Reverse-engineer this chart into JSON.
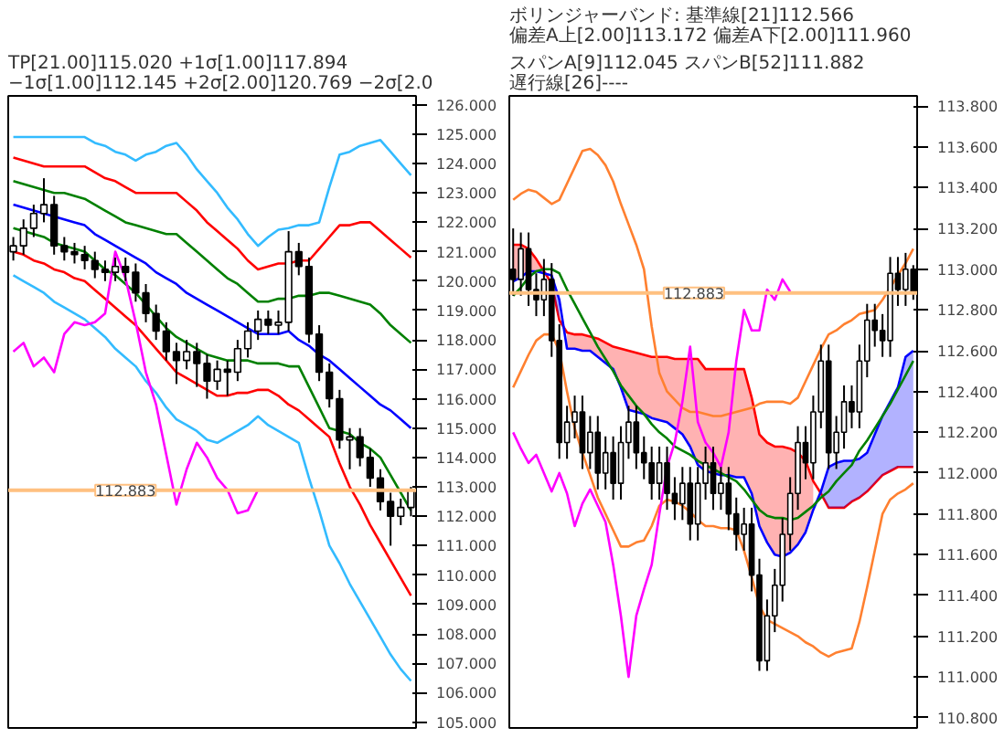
{
  "chart_data": [
    {
      "type": "candlestick",
      "title": "TP[21.00]115.020 +1σ[1.00]117.894 −1σ[1.00]112.145 +2σ[2.00]120.769 −2σ[2.0",
      "tick_labels": "y",
      "grid": false,
      "ylim": [
        104.8,
        126.3
      ],
      "yticks": [
        {
          "value": 105,
          "label": "105.000"
        },
        {
          "value": 106,
          "label": "106.000"
        },
        {
          "value": 107,
          "label": "107.000"
        },
        {
          "value": 108,
          "label": "108.000"
        },
        {
          "value": 109,
          "label": "109.000"
        },
        {
          "value": 110,
          "label": "110.000"
        },
        {
          "value": 111,
          "label": "111.000"
        },
        {
          "value": 112,
          "label": "112.000"
        },
        {
          "value": 113,
          "label": "113.000"
        },
        {
          "value": 114,
          "label": "114.000"
        },
        {
          "value": 115,
          "label": "115.000"
        },
        {
          "value": 116,
          "label": "116.000"
        },
        {
          "value": 117,
          "label": "117.000"
        },
        {
          "value": 118,
          "label": "118.000"
        },
        {
          "value": 119,
          "label": "119.000"
        },
        {
          "value": 120,
          "label": "120.000"
        },
        {
          "value": 121,
          "label": "121.000"
        },
        {
          "value": 122,
          "label": "122.000"
        },
        {
          "value": 123,
          "label": "123.000"
        },
        {
          "value": 124,
          "label": "124.000"
        },
        {
          "value": 125,
          "label": "125.000"
        },
        {
          "value": 126,
          "label": "126.000"
        }
      ],
      "ref_lines": [
        {
          "axis": "y",
          "value": 112.883,
          "label": "112.883",
          "color": "#ffc080"
        }
      ],
      "categories": [
        null,
        null,
        null,
        null,
        null,
        null,
        null,
        null,
        null,
        null,
        null,
        null,
        null,
        null,
        null,
        null,
        null,
        null,
        null,
        null,
        null,
        null,
        null,
        null,
        null,
        null,
        null,
        null,
        null,
        null,
        null,
        null,
        null,
        null,
        null,
        null,
        null,
        null,
        null,
        null
      ],
      "ohlc": [
        [
          121.0,
          121.5,
          120.7,
          121.2
        ],
        [
          121.2,
          122.1,
          120.9,
          121.8
        ],
        [
          121.8,
          122.6,
          121.5,
          122.3
        ],
        [
          122.3,
          123.5,
          122.0,
          122.6
        ],
        [
          122.6,
          122.9,
          120.9,
          121.2
        ],
        [
          121.2,
          121.5,
          120.7,
          121.0
        ],
        [
          121.0,
          121.3,
          120.6,
          120.9
        ],
        [
          120.9,
          121.2,
          120.4,
          120.7
        ],
        [
          120.7,
          121.0,
          120.1,
          120.4
        ],
        [
          120.4,
          120.7,
          120.0,
          120.3
        ],
        [
          120.3,
          120.8,
          120.0,
          120.5
        ],
        [
          120.5,
          120.8,
          120.0,
          120.3
        ],
        [
          120.3,
          120.6,
          119.3,
          119.6
        ],
        [
          119.6,
          119.9,
          118.6,
          118.9
        ],
        [
          118.9,
          119.2,
          118.0,
          118.3
        ],
        [
          118.3,
          118.6,
          117.3,
          117.6
        ],
        [
          117.6,
          117.9,
          116.5,
          117.3
        ],
        [
          117.3,
          118.0,
          117.0,
          117.6
        ],
        [
          117.6,
          117.9,
          116.4,
          117.2
        ],
        [
          117.2,
          117.5,
          116.0,
          116.6
        ],
        [
          116.6,
          117.3,
          116.3,
          117.0
        ],
        [
          117.0,
          117.3,
          116.1,
          116.9
        ],
        [
          116.9,
          118.0,
          116.6,
          117.7
        ],
        [
          117.7,
          118.6,
          117.4,
          118.3
        ],
        [
          118.3,
          119.0,
          118.0,
          118.7
        ],
        [
          118.7,
          119.0,
          118.2,
          118.5
        ],
        [
          118.5,
          119.0,
          118.2,
          118.6
        ],
        [
          118.6,
          121.7,
          118.3,
          121.0
        ],
        [
          121.0,
          121.3,
          120.2,
          120.5
        ],
        [
          120.5,
          120.8,
          117.9,
          118.2
        ],
        [
          118.2,
          118.5,
          116.6,
          116.9
        ],
        [
          116.9,
          117.2,
          115.7,
          116.0
        ],
        [
          116.0,
          116.3,
          114.3,
          114.6
        ],
        [
          114.6,
          115.0,
          113.6,
          114.7
        ],
        [
          114.7,
          115.0,
          113.7,
          114.0
        ],
        [
          114.0,
          114.3,
          113.0,
          113.3
        ],
        [
          113.3,
          113.6,
          112.2,
          112.5
        ],
        [
          112.5,
          112.8,
          111.0,
          112.0
        ],
        [
          112.0,
          112.6,
          111.7,
          112.3
        ],
        [
          112.3,
          113.0,
          112.0,
          112.9
        ]
      ],
      "series": [
        {
          "type": "line",
          "color": "#33bbff",
          "values": [
            124.9,
            124.9,
            124.9,
            124.9,
            124.9,
            124.9,
            124.9,
            124.9,
            124.7,
            124.6,
            124.4,
            124.3,
            124.1,
            124.3,
            124.4,
            124.6,
            124.7,
            124.3,
            123.8,
            123.4,
            123.0,
            122.5,
            122.1,
            121.6,
            121.2,
            121.5,
            121.75,
            121.8,
            121.9,
            121.9,
            122.0,
            123.2,
            124.3,
            124.4,
            124.6,
            124.7,
            124.8,
            124.4,
            124.0,
            123.6
          ]
        },
        {
          "type": "line",
          "color": "#ff0000",
          "values": [
            124.2,
            124.1,
            124.0,
            123.9,
            123.9,
            123.9,
            123.9,
            123.9,
            123.7,
            123.5,
            123.4,
            123.2,
            123.0,
            123.0,
            123.0,
            123.0,
            123.0,
            122.7,
            122.4,
            122.0,
            121.7,
            121.4,
            121.1,
            120.7,
            120.4,
            120.5,
            120.6,
            120.6,
            120.7,
            120.7,
            121.1,
            121.5,
            121.9,
            121.9,
            122.0,
            122.0,
            121.7,
            121.4,
            121.1,
            120.8
          ]
        },
        {
          "type": "line",
          "color": "#008000",
          "values": [
            123.4,
            123.3,
            123.2,
            123.1,
            123.0,
            123.0,
            122.9,
            122.8,
            122.6,
            122.4,
            122.2,
            122.0,
            121.9,
            121.8,
            121.7,
            121.6,
            121.6,
            121.3,
            121.0,
            120.7,
            120.4,
            120.1,
            119.9,
            119.6,
            119.3,
            119.3,
            119.4,
            119.4,
            119.5,
            119.5,
            119.6,
            119.6,
            119.5,
            119.4,
            119.3,
            119.2,
            118.9,
            118.5,
            118.2,
            117.9
          ]
        },
        {
          "type": "line",
          "color": "#0000ff",
          "values": [
            122.6,
            122.5,
            122.4,
            122.3,
            122.2,
            122.1,
            122.0,
            121.9,
            121.6,
            121.4,
            121.2,
            121.0,
            120.8,
            120.6,
            120.3,
            120.1,
            119.9,
            119.6,
            119.4,
            119.2,
            119.0,
            118.8,
            118.6,
            118.4,
            118.2,
            118.2,
            118.2,
            118.3,
            118.0,
            117.8,
            117.5,
            117.3,
            117.0,
            116.7,
            116.4,
            116.1,
            115.8,
            115.6,
            115.3,
            115.0
          ]
        },
        {
          "type": "line",
          "color": "#008000",
          "values": [
            121.8,
            121.7,
            121.6,
            121.5,
            121.3,
            121.2,
            121.1,
            121.0,
            120.7,
            120.4,
            120.2,
            119.9,
            119.6,
            119.2,
            118.8,
            118.4,
            118.1,
            117.9,
            117.7,
            117.5,
            117.4,
            117.3,
            117.3,
            117.3,
            117.2,
            117.2,
            117.2,
            117.1,
            117.1,
            116.4,
            115.7,
            115.0,
            114.9,
            114.8,
            114.5,
            114.3,
            114.0,
            113.4,
            112.8,
            112.2
          ]
        },
        {
          "type": "line",
          "color": "#ff0000",
          "values": [
            121.0,
            120.9,
            120.7,
            120.6,
            120.4,
            120.3,
            120.1,
            120.0,
            119.7,
            119.4,
            119.1,
            118.8,
            118.5,
            118.1,
            117.7,
            117.3,
            116.9,
            116.7,
            116.5,
            116.3,
            116.1,
            116.1,
            116.2,
            116.2,
            116.3,
            116.3,
            116.1,
            115.8,
            115.6,
            115.3,
            115.0,
            114.7,
            113.8,
            113.0,
            112.4,
            111.7,
            111.1,
            110.5,
            109.9,
            109.3
          ]
        },
        {
          "type": "line",
          "color": "#33bbff",
          "values": [
            120.2,
            120.0,
            119.8,
            119.6,
            119.3,
            119.1,
            118.9,
            118.7,
            118.4,
            118.1,
            117.7,
            117.4,
            117.1,
            116.6,
            116.2,
            115.7,
            115.3,
            115.1,
            114.9,
            114.6,
            114.5,
            114.7,
            114.9,
            115.1,
            115.4,
            115.1,
            114.9,
            114.7,
            114.5,
            113.3,
            112.2,
            111.0,
            110.4,
            109.7,
            109.1,
            108.5,
            107.9,
            107.3,
            106.8,
            106.4
          ]
        },
        {
          "type": "line",
          "color": "#ff00ff",
          "values": [
            117.6,
            117.9,
            117.1,
            117.4,
            116.9,
            118.2,
            118.6,
            118.5,
            118.6,
            118.9,
            121.0,
            120.1,
            118.6,
            116.9,
            115.8,
            114.1,
            112.4,
            113.6,
            114.5,
            114.0,
            113.3,
            112.9,
            112.1,
            112.2,
            112.9,
            null,
            null,
            null,
            null,
            null,
            null,
            null,
            null,
            null,
            null,
            null,
            null,
            null,
            null,
            null
          ]
        }
      ]
    },
    {
      "type": "candlestick",
      "title": "ボリンジャーバンド: 基準線[21]112.566 偏差A上[2.00]113.172 偏差A下[2.00]111.960",
      "subtitle": "スパンA[9]112.045 スパンB[52]111.882 遅行線[26]----",
      "tick_labels": "y",
      "grid": false,
      "ylim": [
        110.75,
        113.85
      ],
      "yticks": [
        {
          "value": 110.8,
          "label": "110.800"
        },
        {
          "value": 111.0,
          "label": "111.000"
        },
        {
          "value": 111.2,
          "label": "111.200"
        },
        {
          "value": 111.4,
          "label": "111.400"
        },
        {
          "value": 111.6,
          "label": "111.600"
        },
        {
          "value": 111.8,
          "label": "111.800"
        },
        {
          "value": 112.0,
          "label": "112.000"
        },
        {
          "value": 112.2,
          "label": "112.200"
        },
        {
          "value": 112.4,
          "label": "112.400"
        },
        {
          "value": 112.6,
          "label": "112.600"
        },
        {
          "value": 112.8,
          "label": "112.800"
        },
        {
          "value": 113.0,
          "label": "113.000"
        },
        {
          "value": 113.2,
          "label": "113.200"
        },
        {
          "value": 113.4,
          "label": "113.400"
        },
        {
          "value": 113.6,
          "label": "113.600"
        },
        {
          "value": 113.8,
          "label": "113.800"
        }
      ],
      "ref_lines": [
        {
          "axis": "y",
          "value": 112.883,
          "label": "112.883",
          "color": "#ffc080"
        }
      ],
      "categories": [
        null,
        null,
        null,
        null,
        null,
        null,
        null,
        null,
        null,
        null,
        null,
        null,
        null,
        null,
        null,
        null,
        null,
        null,
        null,
        null,
        null,
        null,
        null,
        null,
        null,
        null,
        null,
        null,
        null,
        null,
        null,
        null,
        null,
        null,
        null,
        null,
        null,
        null,
        null,
        null,
        null,
        null,
        null,
        null,
        null,
        null,
        null,
        null,
        null,
        null,
        null,
        null,
        null
      ],
      "ohlc": [
        [
          113.0,
          113.2,
          112.87,
          112.95
        ],
        [
          112.95,
          113.18,
          112.87,
          113.1
        ],
        [
          113.1,
          113.18,
          112.82,
          112.9
        ],
        [
          112.9,
          112.98,
          112.77,
          112.85
        ],
        [
          112.85,
          113.05,
          112.77,
          112.95
        ],
        [
          112.95,
          113.03,
          112.57,
          112.65
        ],
        [
          112.65,
          112.73,
          112.07,
          112.15
        ],
        [
          112.15,
          112.33,
          112.07,
          112.25
        ],
        [
          112.25,
          112.38,
          112.17,
          112.3
        ],
        [
          112.3,
          112.38,
          112.02,
          112.1
        ],
        [
          112.1,
          112.28,
          112.02,
          112.2
        ],
        [
          112.2,
          112.28,
          111.92,
          112.0
        ],
        [
          112.0,
          112.18,
          111.92,
          112.1
        ],
        [
          112.1,
          112.18,
          111.87,
          111.95
        ],
        [
          111.95,
          112.23,
          111.87,
          112.15
        ],
        [
          112.15,
          112.33,
          112.07,
          112.25
        ],
        [
          112.25,
          112.33,
          112.02,
          112.1
        ],
        [
          112.1,
          112.18,
          111.97,
          112.05
        ],
        [
          112.05,
          112.13,
          111.87,
          111.95
        ],
        [
          111.95,
          112.13,
          111.87,
          112.05
        ],
        [
          112.05,
          112.13,
          111.82,
          111.9
        ],
        [
          111.9,
          111.98,
          111.77,
          111.85
        ],
        [
          111.85,
          112.03,
          111.77,
          111.95
        ],
        [
          111.95,
          112.03,
          111.67,
          111.75
        ],
        [
          111.75,
          112.03,
          111.67,
          111.95
        ],
        [
          111.95,
          112.13,
          111.87,
          112.05
        ],
        [
          112.05,
          112.13,
          111.82,
          111.9
        ],
        [
          111.9,
          112.03,
          111.82,
          111.95
        ],
        [
          111.95,
          112.03,
          111.72,
          111.8
        ],
        [
          111.8,
          111.88,
          111.62,
          111.7
        ],
        [
          111.7,
          111.83,
          111.62,
          111.75
        ],
        [
          111.75,
          111.83,
          111.42,
          111.5
        ],
        [
          111.5,
          111.58,
          111.03,
          111.08
        ],
        [
          111.08,
          111.38,
          111.03,
          111.3
        ],
        [
          111.3,
          111.53,
          111.22,
          111.45
        ],
        [
          111.45,
          111.78,
          111.37,
          111.7
        ],
        [
          111.7,
          111.98,
          111.62,
          111.9
        ],
        [
          111.9,
          112.23,
          111.82,
          112.15
        ],
        [
          112.15,
          112.23,
          111.97,
          112.05
        ],
        [
          112.05,
          112.38,
          111.97,
          112.3
        ],
        [
          112.3,
          112.63,
          112.22,
          112.55
        ],
        [
          112.55,
          112.63,
          112.02,
          112.1
        ],
        [
          112.1,
          112.28,
          112.02,
          112.2
        ],
        [
          112.2,
          112.43,
          112.12,
          112.35
        ],
        [
          112.35,
          112.43,
          112.22,
          112.3
        ],
        [
          112.3,
          112.63,
          112.22,
          112.55
        ],
        [
          112.55,
          112.83,
          112.47,
          112.75
        ],
        [
          112.75,
          112.83,
          112.62,
          112.7
        ],
        [
          112.7,
          112.78,
          112.57,
          112.65
        ],
        [
          112.65,
          113.06,
          112.57,
          112.98
        ],
        [
          112.98,
          113.06,
          112.82,
          112.9
        ],
        [
          112.9,
          113.08,
          112.82,
          113.0
        ],
        [
          113.0,
          113.02,
          112.85,
          112.89
        ]
      ],
      "series": [
        {
          "type": "line",
          "color": "#ff0000",
          "values": [
            113.12,
            113.12,
            113.1,
            113.05,
            112.99,
            112.93,
            112.75,
            112.69,
            112.68,
            112.68,
            112.67,
            112.66,
            112.64,
            112.62,
            112.61,
            112.6,
            112.59,
            112.58,
            112.57,
            112.57,
            112.57,
            112.56,
            112.56,
            112.56,
            112.56,
            112.51,
            112.51,
            112.51,
            112.51,
            112.51,
            112.51,
            112.37,
            112.19,
            112.15,
            112.13,
            112.13,
            112.12,
            112.1,
            112.06,
            111.96,
            111.9,
            111.83,
            111.83,
            111.83,
            111.86,
            111.88,
            111.91,
            111.95,
            111.99,
            112.01,
            112.03,
            112.03,
            112.03
          ],
          "upper": [
            113.12,
            113.12,
            113.1,
            113.05,
            112.99,
            null,
            null,
            112.69,
            112.68,
            112.68,
            112.67,
            112.66,
            112.64,
            112.62,
            112.61,
            112.6,
            112.59,
            112.58,
            112.57,
            112.57,
            112.57,
            112.56,
            112.56,
            112.56,
            112.56,
            112.51,
            112.51,
            112.51,
            112.51,
            112.51,
            112.51,
            112.37,
            112.19,
            112.15,
            112.13,
            112.13,
            112.12,
            112.1,
            112.06,
            111.96,
            null,
            null,
            null,
            null,
            null,
            null,
            null,
            null,
            null,
            null,
            null,
            null,
            null
          ],
          "lower": [
            112.94,
            112.96,
            112.99,
            112.99,
            112.98,
            null,
            null,
            112.61,
            112.61,
            112.6,
            112.6,
            112.57,
            112.54,
            112.51,
            112.42,
            112.31,
            112.3,
            112.29,
            112.27,
            112.26,
            112.25,
            112.22,
            112.19,
            112.13,
            112.04,
            112.01,
            112.0,
            111.99,
            111.99,
            111.98,
            111.98,
            111.9,
            111.74,
            111.66,
            111.6,
            111.59,
            111.61,
            111.65,
            111.71,
            111.82,
            null,
            null,
            null,
            null,
            null,
            null,
            null,
            null,
            null,
            null,
            null,
            null,
            null
          ]
        },
        {
          "type": "line",
          "color": "#0000ff",
          "values": [
            112.94,
            112.96,
            112.99,
            112.99,
            112.98,
            112.97,
            112.85,
            112.61,
            112.61,
            112.6,
            112.6,
            112.57,
            112.54,
            112.51,
            112.42,
            112.31,
            112.3,
            112.29,
            112.27,
            112.26,
            112.25,
            112.22,
            112.19,
            112.13,
            112.04,
            112.01,
            112.0,
            111.99,
            111.99,
            111.98,
            111.98,
            111.9,
            111.74,
            111.66,
            111.6,
            111.59,
            111.61,
            111.65,
            111.71,
            111.82,
            111.91,
            112.03,
            112.05,
            112.06,
            112.06,
            112.07,
            112.1,
            112.19,
            112.28,
            112.35,
            112.42,
            112.57,
            112.6
          ],
          "upper": [
            null,
            null,
            null,
            null,
            null,
            112.97,
            112.85,
            null,
            null,
            null,
            null,
            null,
            null,
            null,
            null,
            null,
            null,
            null,
            null,
            null,
            null,
            null,
            null,
            null,
            null,
            null,
            null,
            null,
            null,
            null,
            null,
            null,
            null,
            null,
            null,
            null,
            null,
            null,
            null,
            null,
            111.91,
            112.03,
            112.05,
            112.06,
            112.06,
            112.07,
            112.1,
            112.19,
            112.28,
            112.35,
            112.42,
            112.57,
            112.6
          ],
          "lower": [
            null,
            null,
            null,
            null,
            null,
            112.93,
            112.75,
            null,
            null,
            null,
            null,
            null,
            null,
            null,
            null,
            null,
            null,
            null,
            null,
            null,
            null,
            null,
            null,
            null,
            null,
            null,
            null,
            null,
            null,
            null,
            null,
            null,
            null,
            null,
            null,
            null,
            null,
            null,
            null,
            null,
            111.9,
            111.83,
            111.83,
            111.83,
            111.86,
            111.88,
            111.91,
            111.95,
            111.99,
            112.01,
            112.03,
            112.03,
            112.03
          ]
        },
        {
          "type": "line",
          "color": "#ff8030",
          "values": [
            113.34,
            113.37,
            113.39,
            113.38,
            113.35,
            113.32,
            113.34,
            113.42,
            113.5,
            113.58,
            113.59,
            113.56,
            113.51,
            113.43,
            113.32,
            113.22,
            113.12,
            113.0,
            112.72,
            112.49,
            112.4,
            112.36,
            112.32,
            112.3,
            112.3,
            112.29,
            112.28,
            112.28,
            112.29,
            112.3,
            112.31,
            112.32,
            112.34,
            112.35,
            112.35,
            112.35,
            112.34,
            112.37,
            112.45,
            112.53,
            112.61,
            112.68,
            112.7,
            112.73,
            112.75,
            112.78,
            112.79,
            112.8,
            112.85,
            112.91,
            112.97,
            113.03,
            113.1
          ]
        },
        {
          "type": "line",
          "color": "#ff8030",
          "values": [
            112.42,
            112.5,
            112.58,
            112.65,
            112.68,
            112.68,
            112.6,
            112.4,
            112.22,
            112.1,
            111.99,
            111.88,
            111.8,
            111.72,
            111.64,
            111.64,
            111.66,
            111.67,
            111.74,
            111.84,
            111.87,
            111.86,
            111.84,
            111.81,
            111.77,
            111.74,
            111.74,
            111.73,
            111.73,
            111.72,
            111.62,
            111.49,
            111.35,
            111.28,
            111.26,
            111.24,
            111.22,
            111.2,
            111.17,
            111.15,
            111.12,
            111.1,
            111.12,
            111.13,
            111.14,
            111.27,
            111.44,
            111.62,
            111.8,
            111.87,
            111.9,
            111.92,
            111.95
          ]
        },
        {
          "type": "line",
          "color": "#008000",
          "values": [
            112.87,
            112.91,
            112.96,
            112.99,
            113.0,
            113.0,
            112.98,
            112.9,
            112.83,
            112.76,
            112.69,
            112.62,
            112.56,
            112.5,
            112.43,
            112.38,
            112.33,
            112.29,
            112.24,
            112.2,
            112.17,
            112.13,
            112.11,
            112.09,
            112.06,
            112.04,
            112.02,
            112.0,
            111.98,
            111.96,
            111.92,
            111.87,
            111.82,
            111.79,
            111.78,
            111.78,
            111.77,
            111.78,
            111.81,
            111.84,
            111.88,
            111.91,
            111.96,
            112.0,
            112.04,
            112.11,
            112.16,
            112.22,
            112.28,
            112.34,
            112.41,
            112.48,
            112.55
          ]
        },
        {
          "type": "line",
          "color": "#ff00ff",
          "values": [
            112.2,
            112.12,
            112.05,
            112.09,
            112.0,
            111.91,
            112.0,
            111.9,
            111.74,
            111.85,
            111.92,
            111.84,
            111.76,
            111.55,
            111.3,
            111.0,
            111.3,
            111.43,
            111.55,
            111.8,
            112.03,
            112.15,
            112.35,
            112.62,
            112.25,
            112.15,
            112.1,
            112.03,
            112.2,
            112.55,
            112.8,
            112.7,
            112.7,
            112.9,
            112.85,
            112.95,
            112.89,
            null,
            null,
            null,
            null,
            null,
            null,
            null,
            null,
            null,
            null,
            null,
            null,
            null,
            null,
            null,
            null
          ]
        }
      ]
    }
  ]
}
